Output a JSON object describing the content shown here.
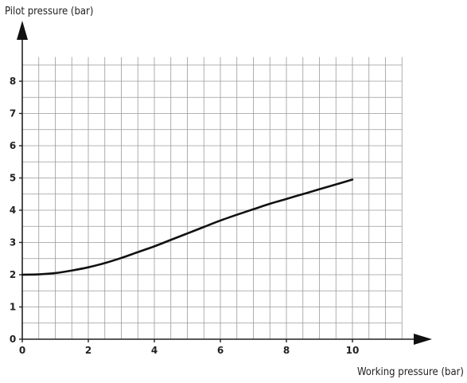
{
  "chart_data": {
    "type": "line",
    "xlabel": "Working pressure (bar)",
    "ylabel": "Pilot pressure (bar)",
    "xlim": [
      0,
      11.5
    ],
    "ylim": [
      0,
      8.75
    ],
    "x_ticks": [
      "0",
      "2",
      "4",
      "6",
      "8",
      "10"
    ],
    "y_ticks": [
      "0",
      "1",
      "2",
      "3",
      "4",
      "5",
      "6",
      "7",
      "8"
    ],
    "grid": true,
    "series": [
      {
        "x": [
          0,
          0.5,
          1,
          1.5,
          2,
          2.5,
          3,
          3.5,
          4,
          4.5,
          5,
          5.5,
          6,
          6.5,
          7,
          7.5,
          8,
          8.5,
          9,
          9.5,
          10
        ],
        "y": [
          2.0,
          2.01,
          2.05,
          2.13,
          2.23,
          2.36,
          2.52,
          2.7,
          2.88,
          3.08,
          3.28,
          3.48,
          3.68,
          3.86,
          4.03,
          4.2,
          4.35,
          4.5,
          4.65,
          4.8,
          4.95
        ]
      }
    ]
  }
}
